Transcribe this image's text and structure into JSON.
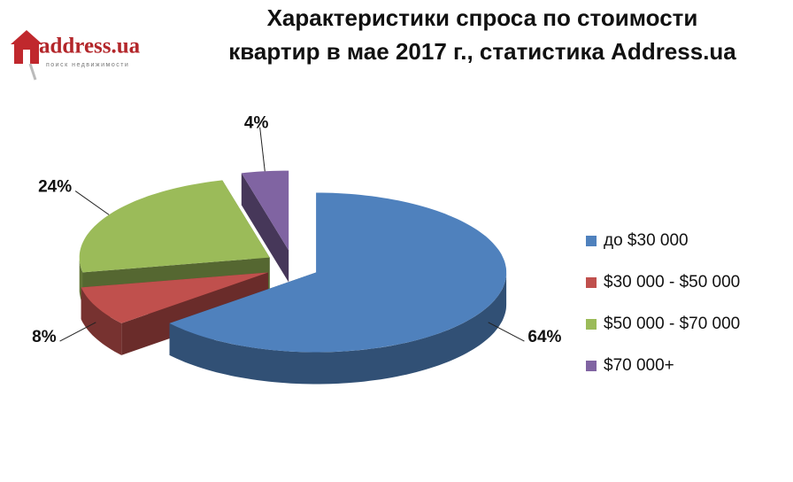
{
  "logo": {
    "text": "address.ua",
    "tagline": "поиск недвижимости"
  },
  "chart_data": {
    "type": "pie",
    "title": [
      "Характеристики спроса по стоимости",
      "квартир в мае 2017 г., статистика Address.ua"
    ],
    "categories": [
      "до $30 000",
      "$30 000 - $50 000",
      "$50 000 - $70 000",
      "$70 000+"
    ],
    "values": [
      64,
      8,
      24,
      4
    ],
    "value_labels": [
      "64%",
      "8%",
      "24%",
      "4%"
    ],
    "colors": [
      "#4f81bd",
      "#c0504d",
      "#9bbb59",
      "#8064a2"
    ],
    "legend": "right"
  }
}
